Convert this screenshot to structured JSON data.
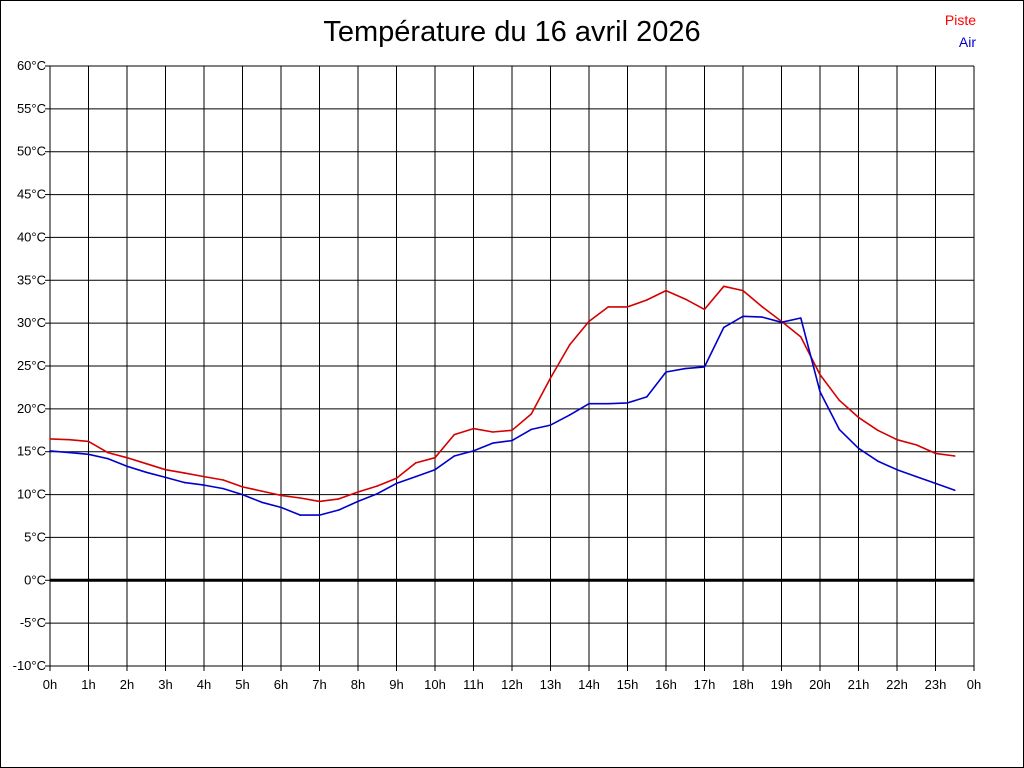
{
  "chart_data": {
    "type": "line",
    "title": "Température du 16 avril 2026",
    "xlabel": "",
    "ylabel": "",
    "x_tick_labels": [
      "0h",
      "1h",
      "2h",
      "3h",
      "4h",
      "5h",
      "6h",
      "7h",
      "8h",
      "9h",
      "10h",
      "11h",
      "12h",
      "13h",
      "14h",
      "15h",
      "16h",
      "17h",
      "18h",
      "19h",
      "20h",
      "21h",
      "22h",
      "23h",
      "0h"
    ],
    "y_tick_labels": [
      "60°C",
      "55°C",
      "50°C",
      "45°C",
      "40°C",
      "35°C",
      "30°C",
      "25°C",
      "20°C",
      "15°C",
      "10°C",
      "5°C",
      "0°C",
      "-5°C",
      "-10°C"
    ],
    "ylim": [
      -10,
      60
    ],
    "xlim": [
      0,
      24
    ],
    "grid": true,
    "legend_position": "top-right",
    "series": [
      {
        "name": "Piste",
        "color": "#d40000",
        "x": [
          0,
          0.5,
          1,
          1.5,
          2,
          2.5,
          3,
          3.5,
          4,
          4.5,
          5,
          5.5,
          6,
          6.5,
          7,
          7.5,
          8,
          8.5,
          9,
          9.5,
          10,
          10.5,
          11,
          11.5,
          12,
          12.5,
          13,
          13.5,
          14,
          14.5,
          15,
          15.5,
          16,
          16.5,
          17,
          17.5,
          18,
          18.5,
          19,
          19.5,
          20,
          20.5,
          21,
          21.5,
          22,
          22.5,
          23,
          23.5
        ],
        "values": [
          16.5,
          16.4,
          16.2,
          14.9,
          14.3,
          13.6,
          12.9,
          12.5,
          12.1,
          11.7,
          10.9,
          10.4,
          9.9,
          9.6,
          9.2,
          9.5,
          10.3,
          11.0,
          11.9,
          13.7,
          14.3,
          17.0,
          17.7,
          17.3,
          17.5,
          19.4,
          23.6,
          27.5,
          30.2,
          31.9,
          31.9,
          32.7,
          33.8,
          32.8,
          31.6,
          34.3,
          33.8,
          31.9,
          30.2,
          28.4,
          24.0,
          21.0,
          19.0,
          17.5,
          16.4,
          15.8,
          14.8,
          14.5
        ]
      },
      {
        "name": "Air",
        "color": "#0000cc",
        "x": [
          0,
          0.5,
          1,
          1.5,
          2,
          2.5,
          3,
          3.5,
          4,
          4.5,
          5,
          5.5,
          6,
          6.5,
          7,
          7.5,
          8,
          8.5,
          9,
          9.5,
          10,
          10.5,
          11,
          11.5,
          12,
          12.5,
          13,
          13.5,
          14,
          14.5,
          15,
          15.5,
          16,
          16.5,
          17,
          17.5,
          18,
          18.5,
          19,
          19.5,
          20,
          20.5,
          21,
          21.5,
          22,
          22.5,
          23,
          23.5
        ],
        "values": [
          15.1,
          14.9,
          14.7,
          14.2,
          13.3,
          12.6,
          12.0,
          11.4,
          11.1,
          10.7,
          10.0,
          9.1,
          8.5,
          7.6,
          7.6,
          8.2,
          9.2,
          10.1,
          11.3,
          12.1,
          12.9,
          14.5,
          15.1,
          16.0,
          16.3,
          17.6,
          18.1,
          19.3,
          20.6,
          20.6,
          20.7,
          21.4,
          24.3,
          24.7,
          24.9,
          29.5,
          30.8,
          30.7,
          30.1,
          30.6,
          22.0,
          17.6,
          15.4,
          13.9,
          12.9,
          12.1,
          11.3,
          10.5
        ]
      }
    ]
  }
}
